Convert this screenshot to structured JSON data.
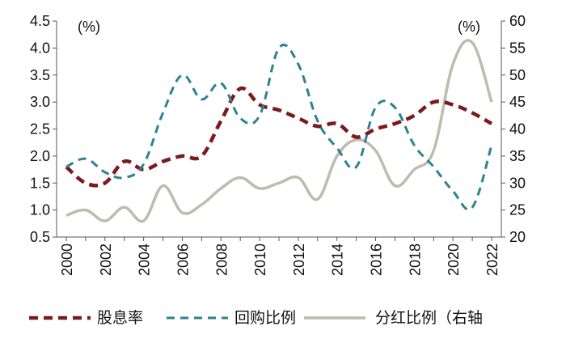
{
  "chart_data": {
    "type": "line",
    "title": "",
    "x": [
      2000,
      2001,
      2002,
      2003,
      2004,
      2005,
      2006,
      2007,
      2008,
      2009,
      2010,
      2011,
      2012,
      2013,
      2014,
      2015,
      2016,
      2017,
      2018,
      2019,
      2020,
      2021,
      2022
    ],
    "x_tick_labels": [
      "2000",
      "2002",
      "2004",
      "2006",
      "2008",
      "2010",
      "2012",
      "2014",
      "2016",
      "2018",
      "2020",
      "2022"
    ],
    "y_left": {
      "unit_label": "(%)",
      "range": [
        0.5,
        4.5
      ],
      "ticks": [
        "0.5",
        "1.0",
        "1.5",
        "2.0",
        "2.5",
        "3.0",
        "3.5",
        "4.0",
        "4.5"
      ]
    },
    "y_right": {
      "unit_label": "(%)",
      "range": [
        20,
        60
      ],
      "ticks": [
        "20",
        "25",
        "30",
        "35",
        "40",
        "45",
        "50",
        "55",
        "60"
      ]
    },
    "series": [
      {
        "name": "股息率",
        "axis": "left",
        "color": "#7b1a1c",
        "style": "dashed-thick",
        "x": [
          2000,
          2001,
          2002,
          2003,
          2004,
          2005,
          2006,
          2007,
          2008,
          2009,
          2010,
          2011,
          2012,
          2013,
          2014,
          2015,
          2016,
          2017,
          2018,
          2019,
          2020,
          2021,
          2022
        ],
        "values": [
          1.8,
          1.5,
          1.5,
          1.9,
          1.75,
          1.9,
          2.0,
          2.0,
          2.65,
          3.25,
          2.95,
          2.85,
          2.7,
          2.55,
          2.6,
          2.35,
          2.5,
          2.6,
          2.75,
          3.0,
          2.95,
          2.8,
          2.6
        ]
      },
      {
        "name": "回购比例",
        "axis": "left",
        "color": "#2e8291",
        "style": "dashed",
        "x": [
          2000,
          2001,
          2002,
          2003,
          2004,
          2005,
          2006,
          2007,
          2008,
          2009,
          2010,
          2011,
          2012,
          2013,
          2014,
          2015,
          2016,
          2017,
          2018,
          2019,
          2020,
          2021,
          2022
        ],
        "values": [
          1.8,
          1.95,
          1.7,
          1.6,
          1.85,
          2.8,
          3.5,
          3.05,
          3.35,
          2.7,
          2.75,
          4.0,
          3.7,
          2.65,
          2.15,
          1.8,
          2.9,
          2.9,
          2.2,
          1.8,
          1.35,
          1.05,
          2.2
        ]
      },
      {
        "name": "分红比例（右轴",
        "axis": "right",
        "color": "#bdbcae",
        "style": "solid",
        "x": [
          2000,
          2001,
          2002,
          2003,
          2004,
          2005,
          2006,
          2007,
          2008,
          2009,
          2010,
          2011,
          2012,
          2013,
          2014,
          2015,
          2016,
          2017,
          2018,
          2019,
          2020,
          2021,
          2022
        ],
        "values": [
          24,
          25,
          23,
          25.5,
          23,
          29.5,
          24.5,
          26,
          29,
          31,
          29,
          30,
          31,
          27,
          35,
          38,
          36,
          29.5,
          32.5,
          36,
          52,
          56,
          45
        ]
      }
    ],
    "legend": {
      "position": "bottom",
      "entries": [
        "股息率",
        "回购比例",
        "分红比例（右轴"
      ]
    }
  }
}
